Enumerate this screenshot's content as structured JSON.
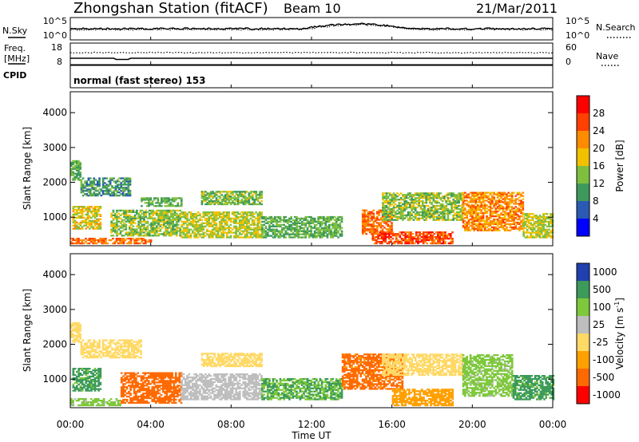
{
  "header": {
    "station": "Zhongshan Station (fitACF)",
    "beam": "Beam 10",
    "date": "21/Mar/2011"
  },
  "status_panels": {
    "noise": {
      "left_label": "N.Sky",
      "left_ticks": [
        "10^5",
        "10^0"
      ],
      "right_label": "N.Search",
      "right_ticks": [
        "10^5",
        "10^0"
      ]
    },
    "freq": {
      "left_label_1": "Freq.",
      "left_label_2": "[MHz]",
      "left_ticks": [
        "18",
        "8"
      ],
      "right_label": "Nave",
      "right_ticks": [
        "60",
        "0"
      ]
    },
    "cpid": {
      "label": "CPID",
      "text": "normal (fast stereo) 153"
    }
  },
  "colors": {
    "power": [
      "#0000ff",
      "#2a5ab3",
      "#3d9a5c",
      "#7fbf3f",
      "#f2c100",
      "#ff8c00",
      "#ff4000",
      "#ff0000"
    ],
    "velocity": [
      "#ff0000",
      "#ff6a00",
      "#ffa000",
      "#ffd966",
      "#bebebe",
      "#7ec83c",
      "#3c9a5a",
      "#2040b0"
    ]
  },
  "chart_data": [
    {
      "type": "heatmap",
      "title": "",
      "xlabel": "Time UT",
      "ylabel": "Slant Range [km]",
      "xlim": [
        "00:00",
        "24:00"
      ],
      "ylim": [
        180,
        4600
      ],
      "x_ticks": [
        "00:00",
        "04:00",
        "08:00",
        "12:00",
        "16:00",
        "20:00",
        "00:00"
      ],
      "y_ticks": [
        "1000",
        "2000",
        "3000",
        "4000"
      ],
      "colorbar": {
        "label": "Power [dB]",
        "ticks": [
          "4",
          "8",
          "12",
          "16",
          "20",
          "24",
          "28"
        ],
        "range": [
          0,
          30
        ]
      },
      "regions": [
        {
          "t0": 0.0,
          "t1": 0.5,
          "r0": 2050,
          "r1": 2600,
          "level": 12
        },
        {
          "t0": 0.5,
          "t1": 3.0,
          "r0": 1600,
          "r1": 2100,
          "level": 10
        },
        {
          "t0": 0.1,
          "t1": 1.5,
          "r0": 650,
          "r1": 1300,
          "level": 17
        },
        {
          "t0": 0.0,
          "t1": 4.0,
          "r0": 230,
          "r1": 380,
          "level": 24
        },
        {
          "t0": 2.0,
          "t1": 5.5,
          "r0": 450,
          "r1": 1200,
          "level": 14
        },
        {
          "t0": 3.5,
          "t1": 5.5,
          "r0": 1300,
          "r1": 1550,
          "level": 12
        },
        {
          "t0": 6.5,
          "t1": 9.5,
          "r0": 1350,
          "r1": 1750,
          "level": 13
        },
        {
          "t0": 5.5,
          "t1": 9.5,
          "r0": 400,
          "r1": 1150,
          "level": 16
        },
        {
          "t0": 9.5,
          "t1": 13.5,
          "r0": 400,
          "r1": 1000,
          "level": 12
        },
        {
          "t0": 14.5,
          "t1": 16.0,
          "r0": 500,
          "r1": 1200,
          "level": 24
        },
        {
          "t0": 15.5,
          "t1": 19.5,
          "r0": 900,
          "r1": 1700,
          "level": 14
        },
        {
          "t0": 15.0,
          "t1": 19.0,
          "r0": 230,
          "r1": 550,
          "level": 26
        },
        {
          "t0": 19.5,
          "t1": 22.5,
          "r0": 600,
          "r1": 1700,
          "level": 22
        },
        {
          "t0": 22.5,
          "t1": 24.0,
          "r0": 400,
          "r1": 1100,
          "level": 16
        }
      ]
    },
    {
      "type": "heatmap",
      "title": "",
      "xlabel": "Time UT",
      "ylabel": "Slant Range [km]",
      "xlim": [
        "00:00",
        "24:00"
      ],
      "ylim": [
        180,
        4600
      ],
      "x_ticks": [
        "00:00",
        "04:00",
        "08:00",
        "12:00",
        "16:00",
        "20:00",
        "00:00"
      ],
      "y_ticks": [
        "1000",
        "2000",
        "3000",
        "4000"
      ],
      "colorbar": {
        "label": "Velocity [m s-1]",
        "label_main": "Velocity [m s",
        "label_sup": "-1",
        "label_end": "]",
        "ticks": [
          "1000",
          "500",
          "100",
          "25",
          "-25",
          "-100",
          "-500",
          "-1000"
        ]
      },
      "regions": [
        {
          "t0": 0.0,
          "t1": 0.5,
          "r0": 2050,
          "r1": 2600,
          "level": 0
        },
        {
          "t0": 0.5,
          "t1": 3.5,
          "r0": 1600,
          "r1": 2100,
          "level": 0
        },
        {
          "t0": 0.1,
          "t1": 1.5,
          "r0": 650,
          "r1": 1300,
          "level": 700
        },
        {
          "t0": 0.0,
          "t1": 2.5,
          "r0": 230,
          "r1": 450,
          "level": 150
        },
        {
          "t0": 2.5,
          "t1": 5.5,
          "r0": 300,
          "r1": 1200,
          "level": -200
        },
        {
          "t0": 6.5,
          "t1": 9.5,
          "r0": 1350,
          "r1": 1750,
          "level": 0
        },
        {
          "t0": 5.5,
          "t1": 9.5,
          "r0": 400,
          "r1": 1150,
          "level": 60
        },
        {
          "t0": 9.5,
          "t1": 13.5,
          "r0": 400,
          "r1": 1000,
          "level": 500
        },
        {
          "t0": 13.5,
          "t1": 16.5,
          "r0": 700,
          "r1": 1700,
          "level": -150
        },
        {
          "t0": 15.5,
          "t1": 19.5,
          "r0": 1100,
          "r1": 1700,
          "level": 0
        },
        {
          "t0": 16.0,
          "t1": 19.0,
          "r0": 230,
          "r1": 700,
          "level": -60
        },
        {
          "t0": 19.5,
          "t1": 22.0,
          "r0": 500,
          "r1": 1700,
          "level": 150
        },
        {
          "t0": 22.0,
          "t1": 24.0,
          "r0": 400,
          "r1": 1100,
          "level": 700
        }
      ]
    }
  ]
}
